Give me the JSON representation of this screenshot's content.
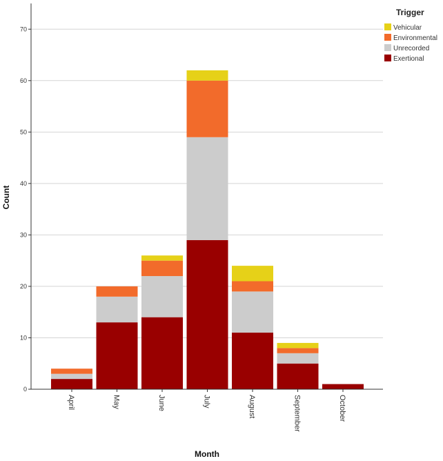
{
  "chart_data": {
    "type": "bar",
    "stacked": true,
    "xlabel": "Month",
    "ylabel": "Count",
    "categories": [
      "April",
      "May",
      "June",
      "July",
      "August",
      "September",
      "October"
    ],
    "ylim": [
      0,
      75
    ],
    "yticks": [
      0,
      10,
      20,
      30,
      40,
      50,
      60,
      70
    ],
    "grid": true,
    "legend": {
      "title": "Trigger",
      "placement": "top-right",
      "entries": [
        "Vehicular",
        "Environmental",
        "Unrecorded",
        "Exertional"
      ]
    },
    "series": [
      {
        "name": "Exertional",
        "color": "#990000",
        "values": [
          2,
          13,
          14,
          29,
          11,
          5,
          1
        ]
      },
      {
        "name": "Unrecorded",
        "color": "#cccccc",
        "values": [
          1,
          5,
          8,
          20,
          8,
          2,
          0
        ]
      },
      {
        "name": "Environmental",
        "color": "#f26b2b",
        "values": [
          1,
          2,
          3,
          11,
          2,
          1,
          0
        ]
      },
      {
        "name": "Vehicular",
        "color": "#e6d118",
        "values": [
          0,
          0,
          1,
          2,
          3,
          1,
          0
        ]
      }
    ]
  }
}
